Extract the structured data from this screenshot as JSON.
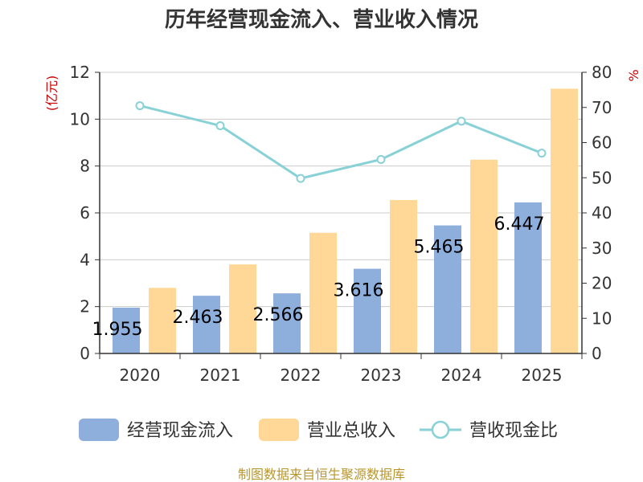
{
  "title": "历年经营现金流入、营业收入情况",
  "source": "制图数据来自恒生聚源数据库",
  "colors": {
    "inflow": "#8eaedc",
    "revenue": "#ffd797",
    "ratio": "#88d1d6"
  },
  "chart_data": {
    "type": "bar",
    "categories": [
      "2020",
      "2021",
      "2022",
      "2023",
      "2024",
      "2025"
    ],
    "series": [
      {
        "name": "经营现金流入",
        "type": "bar",
        "axis": "left",
        "values": [
          1.955,
          2.463,
          2.566,
          3.616,
          5.465,
          6.447
        ],
        "labels": [
          "1.955",
          "2.463",
          "2.566",
          "3.616",
          "5.465",
          "6.447"
        ]
      },
      {
        "name": "营业总收入",
        "type": "bar",
        "axis": "left",
        "values": [
          2.8,
          3.8,
          5.15,
          6.55,
          8.27,
          11.3
        ]
      },
      {
        "name": "营收现金比",
        "type": "line",
        "axis": "right",
        "values": [
          70.5,
          64.8,
          49.8,
          55.2,
          66.1,
          57.0
        ]
      }
    ],
    "y_left": {
      "unit": "(亿元)",
      "ylim": [
        0,
        12
      ],
      "ticks": [
        0,
        2,
        4,
        6,
        8,
        10,
        12
      ]
    },
    "y_right": {
      "unit": "%",
      "ylim": [
        0,
        80
      ],
      "ticks": [
        0,
        10,
        20,
        30,
        40,
        50,
        60,
        70,
        80
      ]
    },
    "grid": true,
    "legend_position": "bottom"
  }
}
